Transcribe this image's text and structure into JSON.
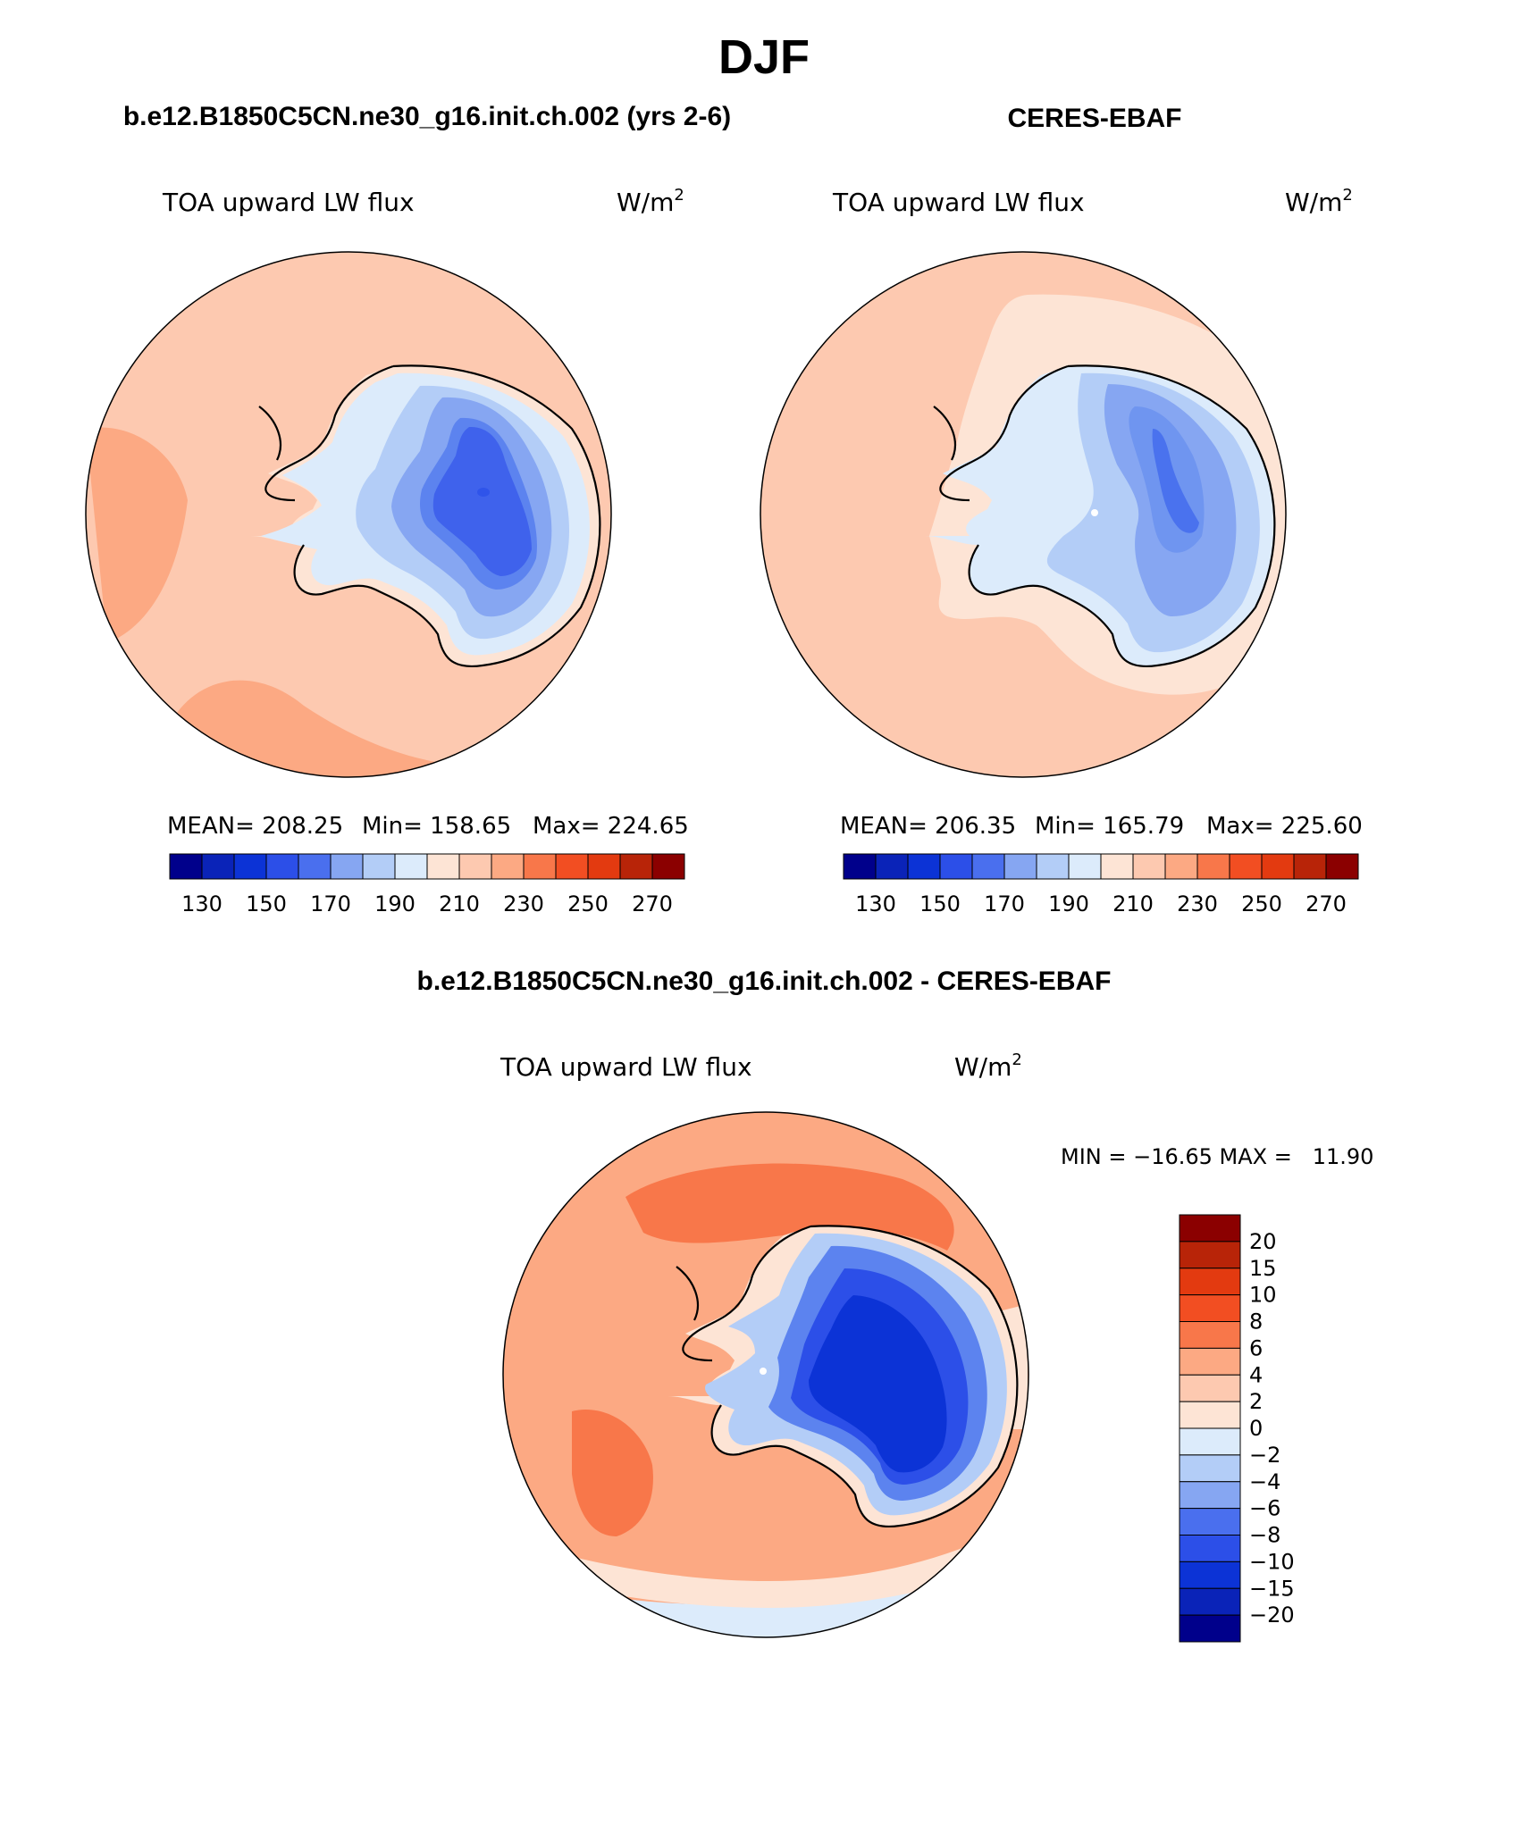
{
  "title": "DJF",
  "chart_data": [
    {
      "type": "heatmap",
      "map": "south-polar-stereographic",
      "title": "b.e12.B1850C5CN.ne30_g16.init.ch.002 (yrs 2-6)",
      "variable": "TOA upward LW flux",
      "unit_base": "W/m",
      "unit_exp": "2",
      "stats": {
        "mean": "MEAN= 208.25",
        "min": "Min= 158.65",
        "max": "Max= 224.65"
      },
      "colorbar_ticks": [
        "130",
        "150",
        "170",
        "190",
        "210",
        "230",
        "250",
        "270"
      ],
      "colors": {
        "ocean": "#fdc9b0",
        "ocean_warm": "#fca983",
        "coast": "#fde4d5",
        "ice_1": "#dcebfb",
        "ice_2": "#b3cdf7",
        "ice_3": "#86a6f2",
        "ice_4": "#5c83ef",
        "ice_5": "#3f62ec"
      }
    },
    {
      "type": "heatmap",
      "map": "south-polar-stereographic",
      "title": "CERES-EBAF",
      "variable": "TOA upward LW flux",
      "unit_base": "W/m",
      "unit_exp": "2",
      "stats": {
        "mean": "MEAN= 206.35",
        "min": "Min= 165.79",
        "max": "Max= 225.60"
      },
      "colorbar_ticks": [
        "130",
        "150",
        "170",
        "190",
        "210",
        "230",
        "250",
        "270"
      ],
      "colors": {
        "ocean": "#fdc9b0",
        "ocean_warm": "#fca983",
        "coast": "#fde4d5",
        "ice_1": "#dcebfb",
        "ice_2": "#b3cdf7",
        "ice_3": "#86a6f2",
        "ice_4": "#6f95f0",
        "ice_5": "#4a72ee"
      }
    },
    {
      "type": "heatmap",
      "map": "south-polar-stereographic",
      "title": "b.e12.B1850C5CN.ne30_g16.init.ch.002 - CERES-EBAF",
      "variable": "TOA upward LW flux",
      "unit_base": "W/m",
      "unit_exp": "2",
      "minmax": "MIN = −16.65 MAX =   11.90",
      "colorbar_ticks": [
        "20",
        "15",
        "10",
        "8",
        "6",
        "4",
        "2",
        "0",
        "−2",
        "−4",
        "−6",
        "−8",
        "−10",
        "−15",
        "−20"
      ],
      "colors": {
        "ocean": "#fca983",
        "ocean_warm": "#f8774a",
        "coast": "#fde4d5",
        "neg_ocean": "#dcebfb",
        "ice_1": "#b3cdf7",
        "ice_2": "#5c83ef",
        "ice_3": "#2c4fe8",
        "ice_4": "#0c33d6"
      }
    }
  ],
  "palette": [
    "#00008b",
    "#0a23b8",
    "#0c33d6",
    "#2c4fe8",
    "#4a6fee",
    "#86a6f2",
    "#b3cdf7",
    "#dcebfb",
    "#fde4d5",
    "#fdc9b0",
    "#fca983",
    "#f8774a",
    "#f24e22",
    "#e33a10",
    "#b82408",
    "#8b0000"
  ]
}
